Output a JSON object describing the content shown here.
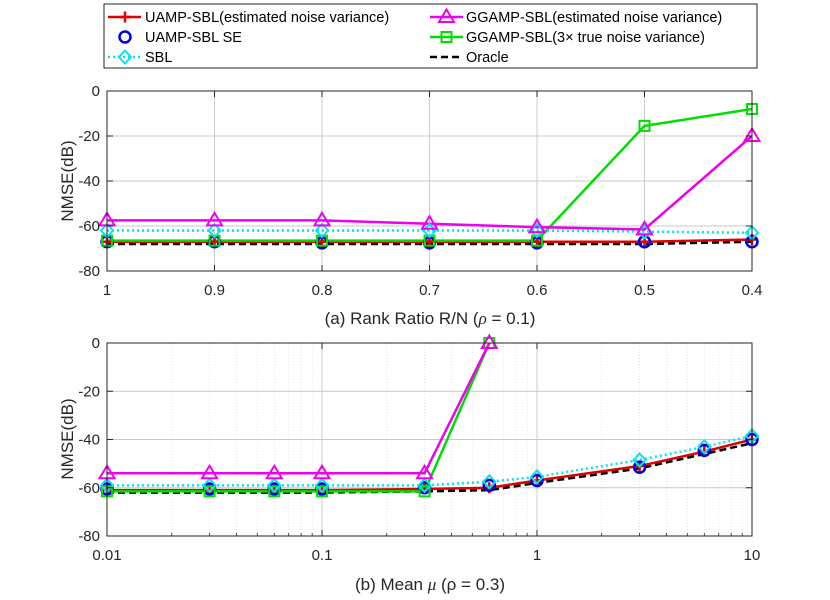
{
  "legend": {
    "entries": [
      {
        "label": "UAMP-SBL(estimated noise variance)",
        "color": "#e00000",
        "marker": "plus",
        "dash": "solid"
      },
      {
        "label": "GGAMP-SBL(estimated noise variance)",
        "color": "#ee00ee",
        "marker": "triangle",
        "dash": "solid"
      },
      {
        "label": "UAMP-SBL SE",
        "color": "#0000e0",
        "marker": "circle",
        "dash": "none"
      },
      {
        "label": "GGAMP-SBL(3× true noise variance)",
        "color": "#00dd00",
        "marker": "square",
        "dash": "solid"
      },
      {
        "label": "SBL",
        "color": "#00e5ee",
        "marker": "diamond",
        "dash": "dotted"
      },
      {
        "label": "Oracle",
        "color": "#000000",
        "marker": "none",
        "dash": "dashed"
      }
    ]
  },
  "chart_data": [
    {
      "type": "line",
      "xscale": "linear",
      "x": [
        1,
        0.9,
        0.8,
        0.7,
        0.6,
        0.5,
        0.4
      ],
      "xlim": [
        1,
        0.4
      ],
      "ylim": [
        -80,
        0
      ],
      "xticks": [
        1,
        0.9,
        0.8,
        0.7,
        0.6,
        0.5,
        0.4
      ],
      "xtick_labels": [
        "1",
        "0.9",
        "0.8",
        "0.7",
        "0.6",
        "0.5",
        "0.4"
      ],
      "yticks": [
        0,
        -20,
        -40,
        -60,
        -80
      ],
      "ytick_labels": [
        "0",
        "-20",
        "-40",
        "-60",
        "-80"
      ],
      "xlabel_prefix": "(a) Rank Ratio R/N (",
      "xlabel_rho": "ρ",
      "xlabel_suffix": " = 0.1)",
      "ylabel": "NMSE(dB)",
      "grid": true,
      "series": [
        {
          "name": "Oracle",
          "values": [
            -68,
            -68,
            -68,
            -68,
            -68,
            -68,
            -67
          ]
        },
        {
          "name": "UAMP-SBL(estimated noise variance)",
          "values": [
            -67,
            -67,
            -67,
            -67,
            -67,
            -67,
            -66
          ]
        },
        {
          "name": "UAMP-SBL SE",
          "values": [
            -67,
            -67,
            -67.5,
            -67.5,
            -67.5,
            -67,
            -67
          ]
        },
        {
          "name": "GGAMP-SBL(3× true noise variance)",
          "values": [
            -66.5,
            -66.5,
            -66.5,
            -66.5,
            -66.5,
            -15.5,
            -8
          ]
        },
        {
          "name": "SBL",
          "values": [
            -62,
            -62,
            -62,
            -62,
            -62,
            -62.5,
            -63
          ]
        },
        {
          "name": "GGAMP-SBL(estimated noise variance)",
          "values": [
            -57.5,
            -57.5,
            -57.5,
            -59,
            -60.5,
            -61.5,
            -20
          ]
        }
      ]
    },
    {
      "type": "line",
      "xscale": "log",
      "x": [
        0.01,
        0.03,
        0.06,
        0.1,
        0.3,
        0.6,
        1,
        3,
        6,
        10
      ],
      "xlim": [
        0.01,
        10
      ],
      "ylim": [
        -80,
        0
      ],
      "xticks": [
        0.01,
        0.1,
        1,
        10
      ],
      "xtick_labels": [
        "0.01",
        "0.1",
        "1",
        "10"
      ],
      "yticks": [
        0,
        -20,
        -40,
        -60,
        -80
      ],
      "ytick_labels": [
        "0",
        "-20",
        "-40",
        "-60",
        "-80"
      ],
      "xlabel_prefix": "(b) Mean ",
      "xlabel_rho": "μ",
      "xlabel_suffix": " (ρ = 0.3)",
      "ylabel": "NMSE(dB)",
      "grid": true,
      "series": [
        {
          "name": "Oracle",
          "values": [
            -62,
            -62,
            -62,
            -62,
            -61.5,
            -61,
            -58,
            -52,
            -46,
            -41.5
          ]
        },
        {
          "name": "UAMP-SBL(estimated noise variance)",
          "values": [
            -61,
            -61,
            -61,
            -61,
            -60.5,
            -60,
            -57,
            -51,
            -45,
            -40
          ]
        },
        {
          "name": "UAMP-SBL SE",
          "values": [
            -60.5,
            -60.5,
            -60.5,
            -60.5,
            -60,
            -59,
            -57,
            -51.5,
            -44.5,
            -40
          ]
        },
        {
          "name": "GGAMP-SBL(3× true noise variance)",
          "values": [
            -61.5,
            -61.5,
            -61.5,
            -61.5,
            -61.5,
            0,
            null,
            null,
            null,
            null
          ]
        },
        {
          "name": "SBL",
          "values": [
            -59,
            -59,
            -59,
            -59,
            -59,
            -57.5,
            -55.5,
            -48.5,
            -43,
            -38.5
          ]
        },
        {
          "name": "GGAMP-SBL(estimated noise variance)",
          "values": [
            -54,
            -54,
            -54,
            -54,
            -54,
            0,
            null,
            null,
            null,
            null
          ]
        }
      ]
    }
  ]
}
